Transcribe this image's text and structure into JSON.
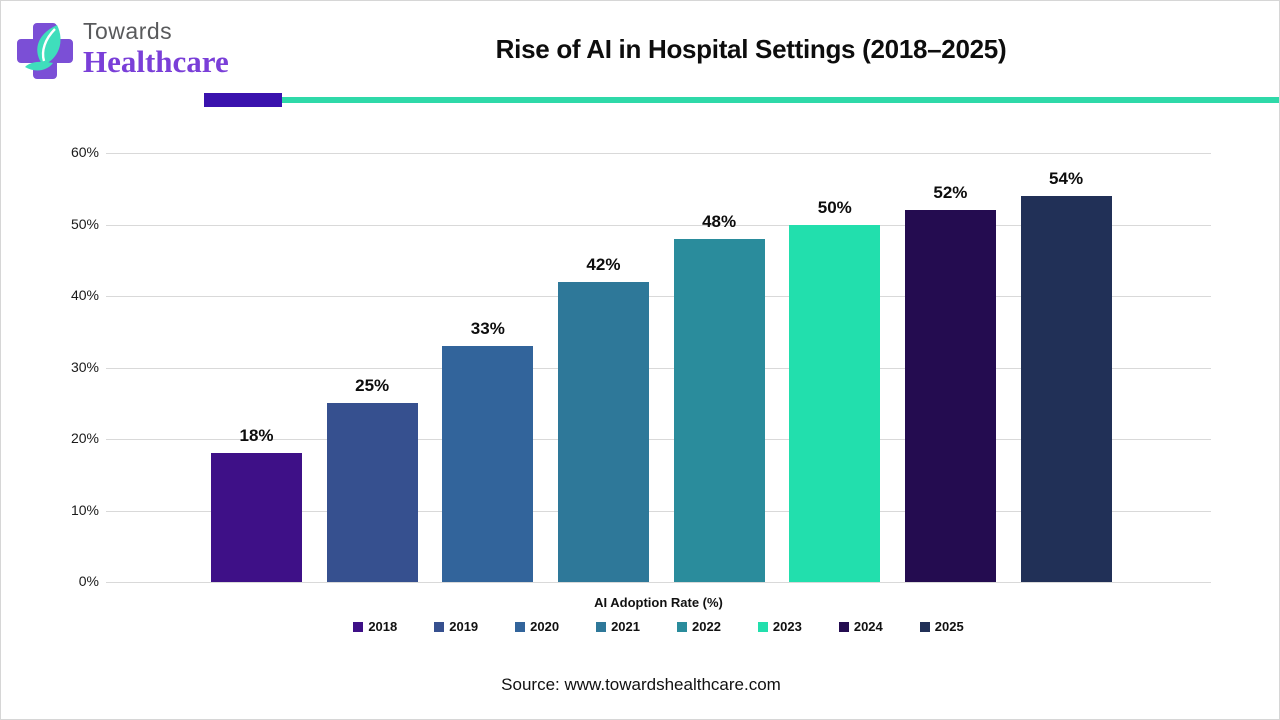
{
  "header": {
    "logo_line1": "Towards",
    "logo_line2": "Healthcare",
    "title": "Rise of AI in Hospital Settings (2018–2025)"
  },
  "brand_colors": {
    "rule_purple": "#3a12ae",
    "rule_teal": "#2ed9a9",
    "logo_cross_purple": "#7b4fd6",
    "logo_leaf_teal": "#3fdebc",
    "logo_text_gray": "#595a5c",
    "logo_text_purple": "#7a3fd8"
  },
  "chart_data": {
    "type": "bar",
    "title": "Rise of AI in Hospital Settings (2018–2025)",
    "categories": [
      "2018",
      "2019",
      "2020",
      "2021",
      "2022",
      "2023",
      "2024",
      "2025"
    ],
    "values": [
      18,
      25,
      33,
      42,
      48,
      50,
      52,
      54
    ],
    "value_labels": [
      "18%",
      "25%",
      "33%",
      "42%",
      "48%",
      "50%",
      "52%",
      "54%"
    ],
    "bar_colors": [
      "#3e1087",
      "#36508f",
      "#32649b",
      "#2e7899",
      "#2a8c9c",
      "#22dfad",
      "#240c50",
      "#213057"
    ],
    "xlabel": "AI Adoption Rate (%)",
    "ylabel": "",
    "ylim": [
      0,
      60
    ],
    "ytick_labels": [
      "0%",
      "10%",
      "20%",
      "30%",
      "40%",
      "50%",
      "60%"
    ],
    "ytick_values": [
      0,
      10,
      20,
      30,
      40,
      50,
      60
    ],
    "grid": true,
    "legend_position": "bottom"
  },
  "source": "Source: www.towardshealthcare.com"
}
